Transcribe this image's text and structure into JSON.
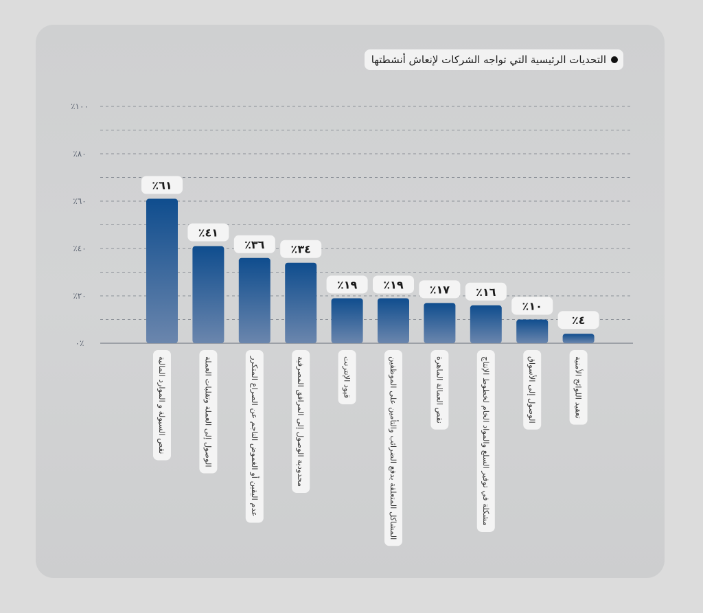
{
  "chart_data": {
    "type": "bar",
    "title": "التحديات الرئيسية التي تواجه الشركات لإنعاش أنشطتها",
    "categories": [
      "نقص السيولة و الموارد المالية",
      "الوصول إلى العملة وتقلبات العملة",
      "عدم اليقين أو الغموض الناجم عن الصراع المتكرر",
      "محدودية الوصول إلى المرافق المصرفية",
      "قيود الإنترنت",
      "المشاكل المتعلقة بدفع الضرائب والتأمين على الموظفين",
      "نقص العمالة الماهرة",
      "مشكلة في توفير السلع والمواد الخام لخطوط الإنتاج",
      "الوصول إلى الأسواق",
      "تعقيد اللوائح الأمنية"
    ],
    "values": [
      61,
      41,
      36,
      34,
      19,
      19,
      17,
      16,
      10,
      4
    ],
    "value_labels": [
      "٪٦١",
      "٪٤١",
      "٪٣٦",
      "٪٣٤",
      "٪١٩",
      "٪١٩",
      "٪١٧",
      "٪١٦",
      "٪١٠",
      "٪٤"
    ],
    "yticks": [
      0,
      20,
      40,
      60,
      80,
      100
    ],
    "ytick_labels": [
      "٠٪",
      "٪٢٠",
      "٪٤٠",
      "٪٦٠",
      "٪٨٠",
      "٪١٠٠"
    ],
    "ylim": [
      0,
      100
    ],
    "grid": true,
    "colors": {
      "bar_top": "#0f4d8e",
      "bar_bottom": "#6b86ad",
      "grid": "#8a8f96",
      "axis": "#8a8f96"
    }
  }
}
